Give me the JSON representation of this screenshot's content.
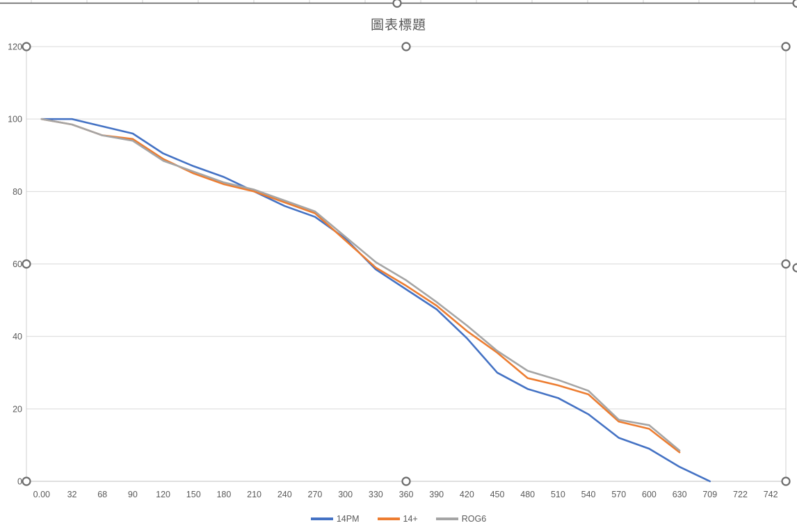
{
  "chart": {
    "title": "圖表標題",
    "state": "selected"
  },
  "palette": {
    "text": "#595959",
    "gridline": "#D9D9D9",
    "axis_line": "#BFBFBF",
    "selection_border": "#CFCFCF",
    "handle_ring": "#6B6B6B",
    "handle_fill": "#FFFFFF",
    "chart_frame": "#595959",
    "sheet_gridline": "#D9D9D9"
  },
  "chart_data": {
    "type": "line",
    "title": "圖表標題",
    "xlabel": "",
    "ylabel": "",
    "ylim": [
      0,
      120
    ],
    "y_ticks": [
      0,
      20,
      40,
      60,
      80,
      100,
      120
    ],
    "grid": true,
    "legend_position": "bottom",
    "categories": [
      "0.00",
      "32",
      "68",
      "90",
      "120",
      "150",
      "180",
      "210",
      "240",
      "270",
      "300",
      "330",
      "360",
      "390",
      "420",
      "450",
      "480",
      "510",
      "540",
      "570",
      "600",
      "630",
      "709",
      "722",
      "742"
    ],
    "series": [
      {
        "name": "14PM",
        "color": "#4472C4",
        "values": [
          100,
          100,
          98,
          96,
          90.5,
          87,
          84,
          80,
          76,
          73,
          67,
          58.5,
          53,
          47.5,
          39.5,
          30,
          25.5,
          23,
          18.5,
          12,
          9,
          4,
          0,
          null,
          null
        ]
      },
      {
        "name": "14+",
        "color": "#ED7D31",
        "values": [
          100,
          98.5,
          95.5,
          94.5,
          89,
          85,
          82,
          80,
          77,
          74,
          66.5,
          59,
          54,
          48.5,
          41.5,
          35.5,
          28.5,
          26.5,
          24,
          16.5,
          14.5,
          8,
          null,
          null,
          null
        ]
      },
      {
        "name": "ROG6",
        "color": "#A5A5A5",
        "values": [
          100,
          98.5,
          95.5,
          94,
          88.5,
          85.5,
          82.5,
          80.5,
          77.5,
          74.5,
          67.5,
          60.5,
          55.5,
          49.5,
          43,
          36,
          30.5,
          28,
          25,
          17,
          15.5,
          8.5,
          null,
          null,
          null
        ]
      }
    ]
  }
}
